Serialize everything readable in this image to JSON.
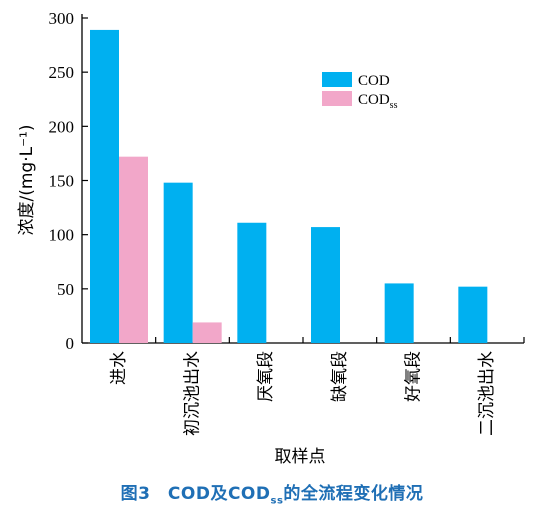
{
  "chart_data": {
    "type": "bar",
    "categories": [
      "进水",
      "初沉池出水",
      "厌氧段",
      "缺氧段",
      "好氧段",
      "二沉池出水"
    ],
    "series": [
      {
        "name": "COD",
        "values": [
          289,
          148,
          111,
          107,
          55,
          52
        ],
        "color": "#00b0f0"
      },
      {
        "name": "COD_ss",
        "values": [
          172,
          19,
          null,
          null,
          null,
          null
        ],
        "color": "#f2a7c9"
      }
    ],
    "xlabel": "取样点",
    "ylabel": "浓度/(mg·L⁻¹)",
    "ylim": [
      0,
      300
    ],
    "yticks": [
      0,
      50,
      100,
      150,
      200,
      250,
      300
    ],
    "grid": false,
    "legend_position": "top-right"
  },
  "legend": {
    "cod_main": "COD",
    "cod_ss_main": "COD",
    "cod_ss_sub": "ss"
  },
  "caption": {
    "prefix": "图3　COD及COD",
    "sub": "ss",
    "suffix": "的全流程变化情况"
  }
}
